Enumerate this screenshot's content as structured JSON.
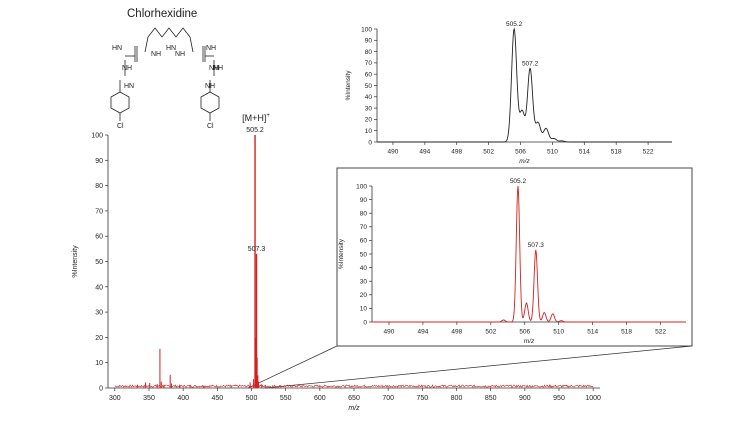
{
  "chart_data": [
    {
      "type": "line",
      "panel": "main",
      "xlabel": "m/z",
      "ylabel": "%Intensity",
      "xlim": [
        290,
        1010
      ],
      "ylim": [
        0,
        100
      ],
      "x_ticks": [
        300,
        350,
        400,
        450,
        500,
        550,
        600,
        650,
        700,
        750,
        800,
        850,
        900,
        950,
        1000
      ],
      "y_ticks": [
        0,
        10,
        20,
        30,
        40,
        50,
        60,
        70,
        80,
        90,
        100
      ],
      "color": "#d62020",
      "peaks": [
        {
          "x": 333,
          "y": 1.2
        },
        {
          "x": 345,
          "y": 2.2
        },
        {
          "x": 351,
          "y": 2.0
        },
        {
          "x": 362,
          "y": 1.5
        },
        {
          "x": 366,
          "y": 15.5
        },
        {
          "x": 368,
          "y": 2.5
        },
        {
          "x": 372,
          "y": 1.3
        },
        {
          "x": 381,
          "y": 5.2
        },
        {
          "x": 383,
          "y": 1.8
        },
        {
          "x": 395,
          "y": 1.0
        },
        {
          "x": 410,
          "y": 1.1
        },
        {
          "x": 430,
          "y": 0.9
        },
        {
          "x": 470,
          "y": 0.9
        },
        {
          "x": 498,
          "y": 2.2
        },
        {
          "x": 503,
          "y": 3.5
        },
        {
          "x": 505.2,
          "y": 100
        },
        {
          "x": 506.2,
          "y": 20
        },
        {
          "x": 507.3,
          "y": 53
        },
        {
          "x": 508.3,
          "y": 12
        },
        {
          "x": 509.3,
          "y": 5
        },
        {
          "x": 510.3,
          "y": 2.5
        },
        {
          "x": 515,
          "y": 1.5
        },
        {
          "x": 520,
          "y": 1.0
        }
      ],
      "annotations": [
        {
          "text": "505.2",
          "x": 505.2,
          "y": 100
        },
        {
          "text": "507.3",
          "x": 507.3,
          "y": 53
        }
      ],
      "ion_label": "[M+H]",
      "ion_label_sup": "+"
    },
    {
      "type": "line",
      "panel": "theoretical-isotope-inset",
      "xlabel": "m/z",
      "ylabel": "%Intensity",
      "xlim": [
        488,
        525
      ],
      "ylim": [
        0,
        100
      ],
      "x_ticks": [
        490,
        494,
        498,
        502,
        506,
        510,
        514,
        518,
        522
      ],
      "y_ticks": [
        0,
        10,
        20,
        30,
        40,
        50,
        60,
        70,
        80,
        90,
        100
      ],
      "color": "#222222",
      "peaks": [
        {
          "x": 505.2,
          "y": 100
        },
        {
          "x": 506.2,
          "y": 27
        },
        {
          "x": 507.2,
          "y": 65
        },
        {
          "x": 508.2,
          "y": 17
        },
        {
          "x": 509.2,
          "y": 12
        },
        {
          "x": 510.2,
          "y": 3
        },
        {
          "x": 511.2,
          "y": 1
        }
      ],
      "annotations": [
        {
          "text": "505.2",
          "x": 505.2,
          "y": 100
        },
        {
          "text": "507.2",
          "x": 507.2,
          "y": 65
        }
      ]
    },
    {
      "type": "line",
      "panel": "observed-zoom-inset",
      "xlabel": "m/z",
      "ylabel": "%Intensity",
      "xlim": [
        488,
        525
      ],
      "ylim": [
        0,
        100
      ],
      "x_ticks": [
        490,
        494,
        498,
        502,
        506,
        510,
        514,
        518,
        522
      ],
      "y_ticks": [
        0,
        10,
        20,
        30,
        40,
        50,
        60,
        70,
        80,
        90,
        100
      ],
      "color": "#d62020",
      "peaks": [
        {
          "x": 503.5,
          "y": 1.5
        },
        {
          "x": 505.2,
          "y": 100
        },
        {
          "x": 506.2,
          "y": 14
        },
        {
          "x": 507.3,
          "y": 53
        },
        {
          "x": 508.3,
          "y": 7
        },
        {
          "x": 509.3,
          "y": 6
        },
        {
          "x": 510.3,
          "y": 1
        }
      ],
      "annotations": [
        {
          "text": "505.2",
          "x": 505.2,
          "y": 100
        },
        {
          "text": "507.3",
          "x": 507.3,
          "y": 53
        }
      ]
    }
  ],
  "structure": {
    "title": "Chlorhexidine",
    "labels": [
      "HN",
      "NH",
      "NH",
      "HN",
      "NH",
      "NH",
      "NH",
      "HN",
      "NH",
      "NH",
      "Cl",
      "Cl"
    ]
  }
}
